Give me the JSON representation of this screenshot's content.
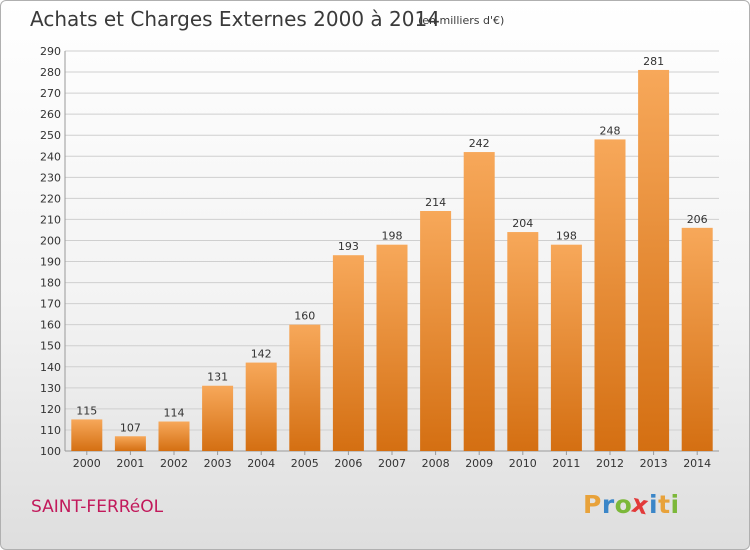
{
  "title": "Achats et Charges Externes 2000 à 2014",
  "unit": "(en milliers d'€)",
  "city": "SAINT-FERRéOL",
  "brand": {
    "letters": [
      "P",
      "r",
      "o",
      "x",
      "i",
      "t",
      "i"
    ],
    "colors": [
      "#e8a23a",
      "#3b86c8",
      "#7cb83a",
      "#e23a3a",
      "#3b86c8",
      "#e8a23a",
      "#7cb83a"
    ]
  },
  "chart_data": {
    "type": "bar",
    "title": "Achats et Charges Externes 2000 à 2014",
    "categories": [
      "2000",
      "2001",
      "2002",
      "2003",
      "2004",
      "2005",
      "2006",
      "2007",
      "2008",
      "2009",
      "2010",
      "2011",
      "2012",
      "2013",
      "2014"
    ],
    "values": [
      115,
      107,
      114,
      131,
      142,
      160,
      193,
      198,
      214,
      242,
      204,
      198,
      248,
      281,
      206
    ],
    "ylim": [
      100,
      290
    ],
    "yticks": [
      100,
      110,
      120,
      130,
      140,
      150,
      160,
      170,
      180,
      190,
      200,
      210,
      220,
      230,
      240,
      250,
      260,
      270,
      280,
      290
    ],
    "grid": true,
    "bar_color": "#f09030"
  }
}
